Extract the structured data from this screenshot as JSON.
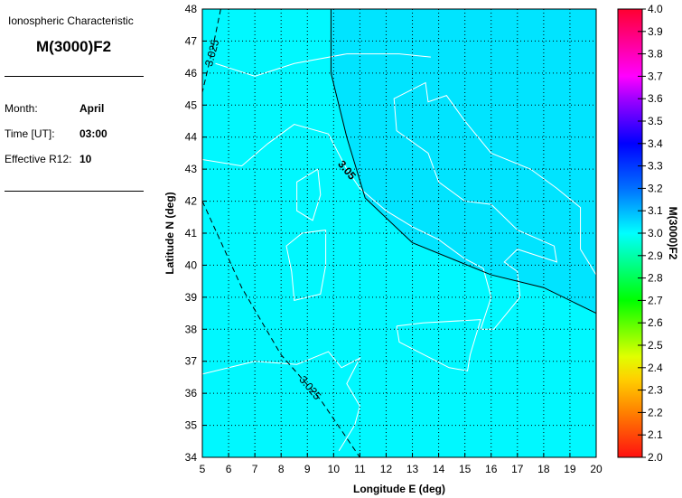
{
  "panel": {
    "heading": "Ionospheric Characteristic",
    "characteristic": "M(3000)F2",
    "month_label": "Month:",
    "month": "April",
    "time_label": "Time [UT]:",
    "time": "03:00",
    "r12_label": "Effective R12:",
    "r12": "10"
  },
  "chart_data": {
    "type": "heatmap",
    "xlabel": "Longitude E (deg)",
    "ylabel": "Latitude N (deg)",
    "xlim": [
      5,
      20
    ],
    "ylim": [
      34,
      48
    ],
    "xticks": [
      5,
      6,
      7,
      8,
      9,
      10,
      11,
      12,
      13,
      14,
      15,
      16,
      17,
      18,
      19,
      20
    ],
    "yticks": [
      34,
      35,
      36,
      37,
      38,
      39,
      40,
      41,
      42,
      43,
      44,
      45,
      46,
      47,
      48
    ],
    "grid": true,
    "colors": {
      "low_region": "#00f8ff",
      "high_region": "#00e4ff",
      "coastline": "#ffffff",
      "contour": "#000000"
    },
    "contours": [
      {
        "level": "3.05",
        "style": "solid",
        "points": [
          [
            9.9,
            48
          ],
          [
            9.9,
            46
          ],
          [
            10.5,
            44
          ],
          [
            11.2,
            42.1
          ],
          [
            13,
            40.7
          ],
          [
            16,
            39.7
          ],
          [
            18,
            39.3
          ],
          [
            20,
            38.5
          ]
        ]
      },
      {
        "level": "3.025",
        "style": "dashed",
        "points": [
          [
            5.7,
            48
          ],
          [
            5.4,
            46.8
          ],
          [
            5,
            45.4
          ]
        ]
      },
      {
        "level": "3.025",
        "style": "dashed",
        "points": [
          [
            5,
            42
          ],
          [
            6.5,
            39.3
          ],
          [
            8,
            37.2
          ],
          [
            9.5,
            35.8
          ],
          [
            11,
            34
          ]
        ]
      }
    ],
    "colorbar": {
      "label": "M(3000)F2",
      "range": [
        2.0,
        4.0
      ],
      "ticks": [
        "2.0",
        "2.1",
        "2.2",
        "2.3",
        "2.4",
        "2.5",
        "2.6",
        "2.7",
        "2.8",
        "2.9",
        "3.0",
        "3.1",
        "3.2",
        "3.3",
        "3.4",
        "3.5",
        "3.6",
        "3.7",
        "3.8",
        "3.9",
        "4.0"
      ],
      "stops": [
        [
          2.0,
          "#ff1010"
        ],
        [
          2.2,
          "#ff8000"
        ],
        [
          2.35,
          "#ffd000"
        ],
        [
          2.45,
          "#e0ff00"
        ],
        [
          2.7,
          "#00ff00"
        ],
        [
          3.0,
          "#00ffff"
        ],
        [
          3.2,
          "#0070ff"
        ],
        [
          3.4,
          "#0000ff"
        ],
        [
          3.6,
          "#a000ff"
        ],
        [
          3.7,
          "#ff00ff"
        ],
        [
          4.0,
          "#ff0030"
        ]
      ]
    }
  }
}
